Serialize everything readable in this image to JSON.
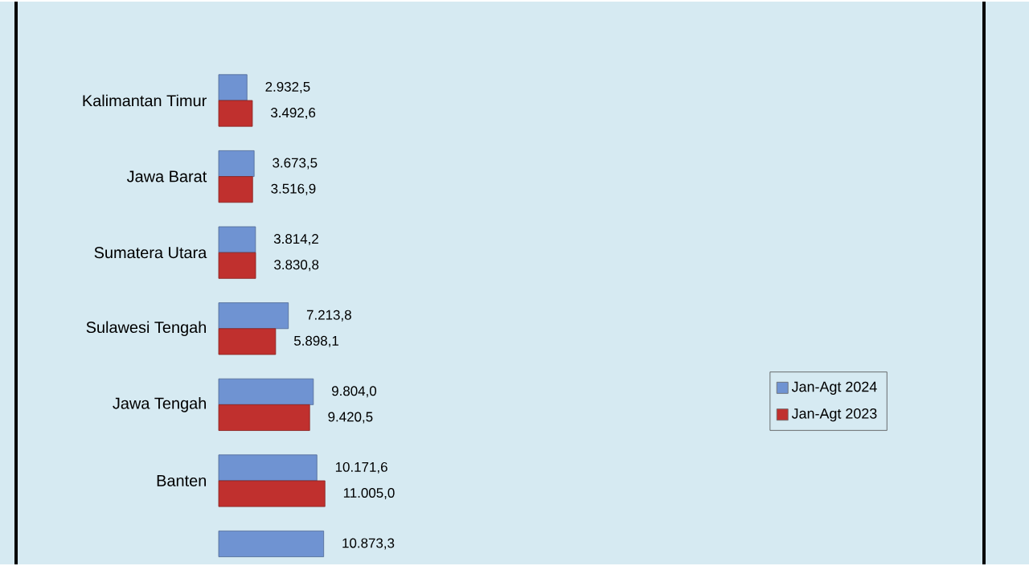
{
  "chart_data": {
    "type": "bar",
    "orientation": "horizontal",
    "categories": [
      "Kalimantan Timur",
      "Jawa Barat",
      "Sumatera Utara",
      "Sulawesi Tengah",
      "Jawa Tengah",
      "Banten",
      null
    ],
    "series": [
      {
        "name": "Jan-Agt 2024",
        "color": "#6f93d2",
        "values": [
          2932.5,
          3673.5,
          3814.2,
          7213.8,
          9804.0,
          10171.6,
          10873.3
        ],
        "value_labels": [
          "2.932,5",
          "3.673,5",
          "3.814,2",
          "7.213,8",
          "9.804,0",
          "10.171,6",
          "10.873,3"
        ]
      },
      {
        "name": "Jan-Agt 2023",
        "color": "#c0302e",
        "values": [
          3492.6,
          3516.9,
          3830.8,
          5898.1,
          9420.5,
          11005.0,
          null
        ],
        "value_labels": [
          "3.492,6",
          "3.516,9",
          "3.830,8",
          "5.898,1",
          "9.420,5",
          "11.005,0",
          null
        ]
      }
    ],
    "legend": "right"
  }
}
